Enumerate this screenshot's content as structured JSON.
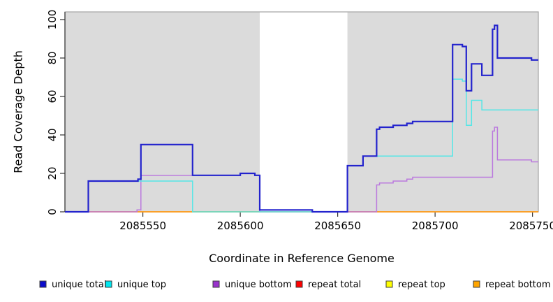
{
  "chart_data": {
    "type": "line",
    "subtype": "step-coverage",
    "title": "",
    "xlabel": "Coordinate in Reference Genome",
    "ylabel": "Read Coverage Depth",
    "xlim": [
      2085510,
      2085753
    ],
    "ylim": [
      0,
      104
    ],
    "x_ticks": [
      2085550,
      2085600,
      2085650,
      2085700,
      2085750
    ],
    "y_ticks": [
      0,
      20,
      40,
      60,
      80,
      100
    ],
    "grid": false,
    "plot_bg_color": "#dbdbdb",
    "box_border_color": "#a3a3a3",
    "axis_color": "#333333",
    "highlight_band": {
      "x0": 2085610,
      "x1": 2085655,
      "color": "#ffffff"
    },
    "series": [
      {
        "name": "repeat-total",
        "label": "repeat total",
        "line_color": "#d23b3b",
        "legend_color": "#ff0000",
        "line_width": 1.3,
        "points": [
          [
            2085510,
            0
          ]
        ]
      },
      {
        "name": "repeat-top",
        "label": "repeat top",
        "line_color": "#e6e600",
        "legend_color": "#ffff00",
        "line_width": 1.3,
        "points": [
          [
            2085510,
            0
          ]
        ]
      },
      {
        "name": "repeat-bottom",
        "label": "repeat bottom",
        "line_color": "#ff9d1e",
        "legend_color": "#ffa500",
        "line_width": 1.8,
        "points": [
          [
            2085510,
            0
          ]
        ]
      },
      {
        "name": "unique-bottom",
        "label": "unique bottom",
        "line_color": "#bb7ade",
        "legend_color": "#9933cc",
        "line_width": 1.5,
        "points": [
          [
            2085510,
            0
          ],
          [
            2085547,
            1
          ],
          [
            2085549,
            19
          ],
          [
            2085600,
            20
          ],
          [
            2085607.5,
            19
          ],
          [
            2085610,
            0
          ],
          [
            2085670,
            14
          ],
          [
            2085671.5,
            15
          ],
          [
            2085678.5,
            16
          ],
          [
            2085685.5,
            17
          ],
          [
            2085688.5,
            18
          ],
          [
            2085729.5,
            42
          ],
          [
            2085730.5,
            44
          ],
          [
            2085732,
            27
          ],
          [
            2085749.5,
            26
          ]
        ]
      },
      {
        "name": "unique-top",
        "label": "unique top",
        "line_color": "#55e6e6",
        "legend_color": "#00e6ee",
        "line_width": 1.5,
        "points": [
          [
            2085510,
            0
          ],
          [
            2085522,
            16
          ],
          [
            2085575.5,
            0
          ],
          [
            2085655,
            24
          ],
          [
            2085663,
            29
          ],
          [
            2085709,
            69
          ],
          [
            2085714,
            68
          ],
          [
            2085716,
            45
          ],
          [
            2085718.7,
            58
          ],
          [
            2085724,
            53
          ]
        ]
      },
      {
        "name": "unique-total",
        "label": "unique total",
        "line_color": "#2323cd",
        "legend_color": "#0d0dcc",
        "line_width": 2.2,
        "points": [
          [
            2085510,
            0
          ],
          [
            2085522,
            16
          ],
          [
            2085547.5,
            17
          ],
          [
            2085549,
            35
          ],
          [
            2085575.5,
            19
          ],
          [
            2085600,
            20
          ],
          [
            2085607.5,
            19
          ],
          [
            2085610,
            1
          ],
          [
            2085637,
            0
          ],
          [
            2085655,
            24
          ],
          [
            2085663,
            29
          ],
          [
            2085670,
            43
          ],
          [
            2085671.5,
            44
          ],
          [
            2085678.5,
            45
          ],
          [
            2085685.5,
            46
          ],
          [
            2085688.5,
            47
          ],
          [
            2085709,
            87
          ],
          [
            2085714,
            86
          ],
          [
            2085716,
            63
          ],
          [
            2085718.7,
            77
          ],
          [
            2085724,
            71
          ],
          [
            2085729.5,
            95
          ],
          [
            2085730.5,
            97
          ],
          [
            2085732,
            80
          ],
          [
            2085749.5,
            79
          ]
        ]
      }
    ],
    "legend": {
      "position": "bottom",
      "square_border_color": "#3c3c3c",
      "items": [
        {
          "label": "unique total",
          "color": "#0d0dcc"
        },
        {
          "label": "unique top",
          "color": "#00e6ee"
        },
        {
          "label": "unique bottom",
          "color": "#9933cc"
        },
        {
          "label": "repeat total",
          "color": "#ff0000"
        },
        {
          "label": "repeat top",
          "color": "#ffff00"
        },
        {
          "label": "repeat bottom",
          "color": "#ffa500"
        }
      ]
    }
  }
}
